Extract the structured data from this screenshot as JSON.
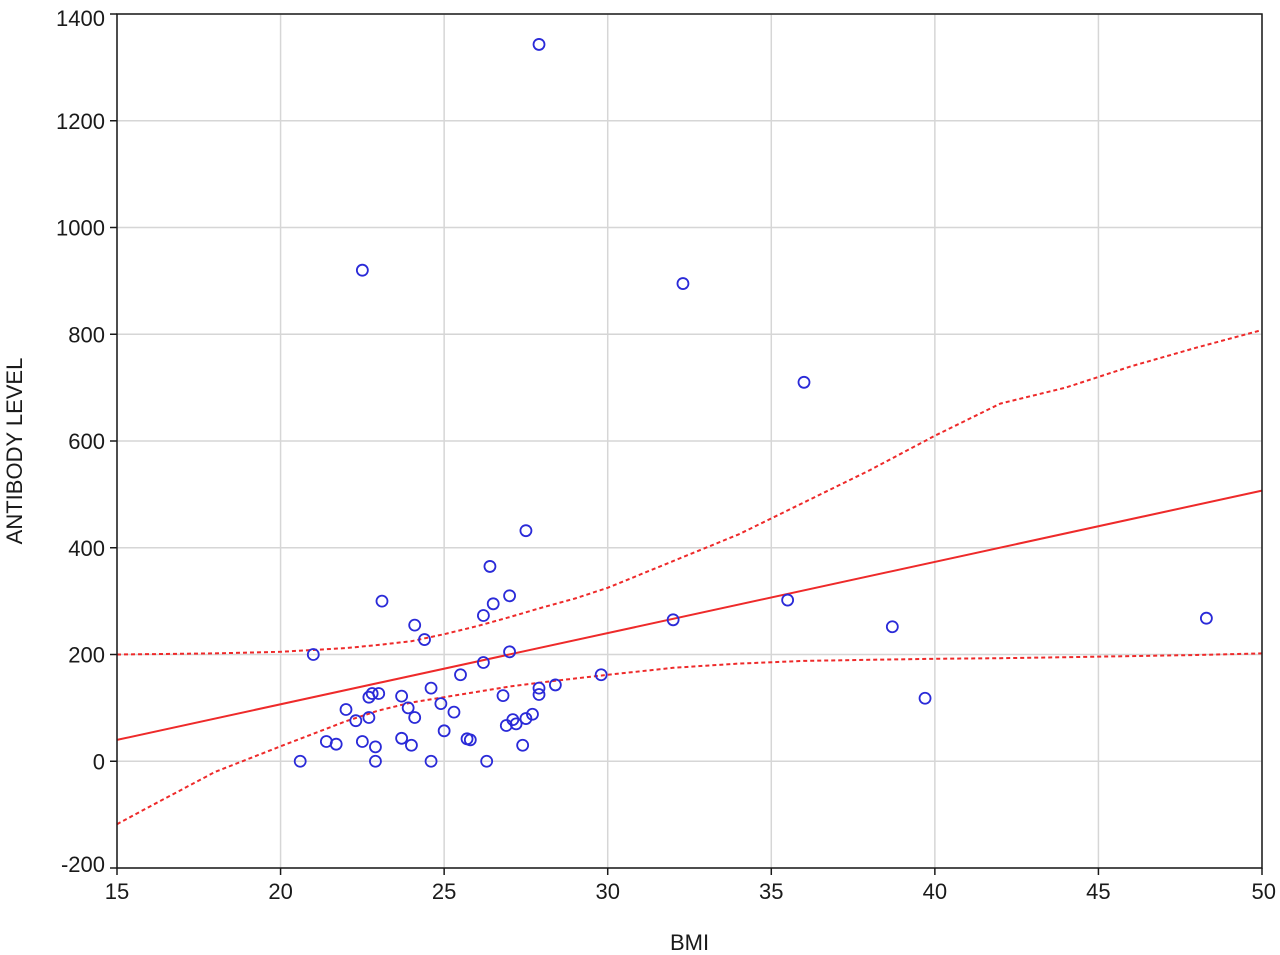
{
  "chart_data": {
    "type": "scatter",
    "title": "",
    "xlabel": "BMI",
    "ylabel": "ANTIBODY LEVEL",
    "xlim": [
      15,
      50
    ],
    "ylim": [
      -200,
      1400
    ],
    "x_ticks": [
      15,
      20,
      25,
      30,
      35,
      40,
      45,
      50
    ],
    "y_ticks": [
      -200,
      0,
      200,
      400,
      600,
      800,
      1000,
      1200,
      1400
    ],
    "grid": true,
    "colors": {
      "points": "#2a2ad8",
      "fit": "#ee2a2a",
      "confidence": "#ee2a2a",
      "grid": "#d6d6d6"
    },
    "points": [
      {
        "x": 20.6,
        "y": 0
      },
      {
        "x": 21.0,
        "y": 200
      },
      {
        "x": 21.4,
        "y": 37
      },
      {
        "x": 21.7,
        "y": 32
      },
      {
        "x": 22.0,
        "y": 97
      },
      {
        "x": 22.3,
        "y": 76
      },
      {
        "x": 22.5,
        "y": 920
      },
      {
        "x": 22.5,
        "y": 37
      },
      {
        "x": 22.7,
        "y": 82
      },
      {
        "x": 22.7,
        "y": 120
      },
      {
        "x": 22.8,
        "y": 127
      },
      {
        "x": 22.9,
        "y": 27
      },
      {
        "x": 22.9,
        "y": 0
      },
      {
        "x": 23.0,
        "y": 127
      },
      {
        "x": 23.1,
        "y": 300
      },
      {
        "x": 23.7,
        "y": 122
      },
      {
        "x": 23.7,
        "y": 43
      },
      {
        "x": 23.9,
        "y": 100
      },
      {
        "x": 24.0,
        "y": 30
      },
      {
        "x": 24.1,
        "y": 82
      },
      {
        "x": 24.1,
        "y": 255
      },
      {
        "x": 24.4,
        "y": 228
      },
      {
        "x": 24.6,
        "y": 137
      },
      {
        "x": 24.6,
        "y": 0
      },
      {
        "x": 24.9,
        "y": 108
      },
      {
        "x": 25.0,
        "y": 57
      },
      {
        "x": 25.3,
        "y": 92
      },
      {
        "x": 25.5,
        "y": 162
      },
      {
        "x": 25.7,
        "y": 42
      },
      {
        "x": 25.8,
        "y": 40
      },
      {
        "x": 26.2,
        "y": 273
      },
      {
        "x": 26.2,
        "y": 185
      },
      {
        "x": 26.3,
        "y": 0
      },
      {
        "x": 26.4,
        "y": 365
      },
      {
        "x": 26.5,
        "y": 295
      },
      {
        "x": 26.8,
        "y": 123
      },
      {
        "x": 26.9,
        "y": 67
      },
      {
        "x": 27.0,
        "y": 205
      },
      {
        "x": 27.0,
        "y": 310
      },
      {
        "x": 27.1,
        "y": 78
      },
      {
        "x": 27.2,
        "y": 70
      },
      {
        "x": 27.4,
        "y": 30
      },
      {
        "x": 27.5,
        "y": 432
      },
      {
        "x": 27.5,
        "y": 80
      },
      {
        "x": 27.7,
        "y": 88
      },
      {
        "x": 27.9,
        "y": 1343
      },
      {
        "x": 27.9,
        "y": 137
      },
      {
        "x": 27.9,
        "y": 125
      },
      {
        "x": 28.4,
        "y": 143
      },
      {
        "x": 29.8,
        "y": 162
      },
      {
        "x": 32.0,
        "y": 265
      },
      {
        "x": 32.3,
        "y": 895
      },
      {
        "x": 35.5,
        "y": 302
      },
      {
        "x": 36.0,
        "y": 710
      },
      {
        "x": 38.7,
        "y": 252
      },
      {
        "x": 39.7,
        "y": 118
      },
      {
        "x": 48.3,
        "y": 268
      }
    ],
    "fit_line": {
      "x": [
        15,
        50
      ],
      "y": [
        40,
        507
      ]
    },
    "confidence_upper": {
      "x": [
        15,
        18,
        20,
        22,
        23,
        24,
        25,
        26,
        27,
        28,
        29,
        30,
        32,
        34,
        36,
        38,
        40,
        42,
        44,
        46,
        48,
        50
      ],
      "y": [
        200,
        202,
        205,
        212,
        218,
        225,
        238,
        253,
        270,
        288,
        305,
        325,
        375,
        425,
        485,
        545,
        610,
        670,
        700,
        740,
        775,
        808
      ]
    },
    "confidence_lower": {
      "x": [
        15,
        16,
        18,
        20,
        22,
        23,
        24,
        25,
        26,
        27,
        28,
        29,
        30,
        32,
        34,
        36,
        38,
        40,
        42,
        44,
        46,
        48,
        50
      ],
      "y": [
        -118,
        -85,
        -20,
        28,
        75,
        95,
        110,
        120,
        130,
        140,
        148,
        155,
        162,
        175,
        183,
        188,
        190,
        192,
        193,
        195,
        197,
        199,
        202
      ]
    }
  }
}
